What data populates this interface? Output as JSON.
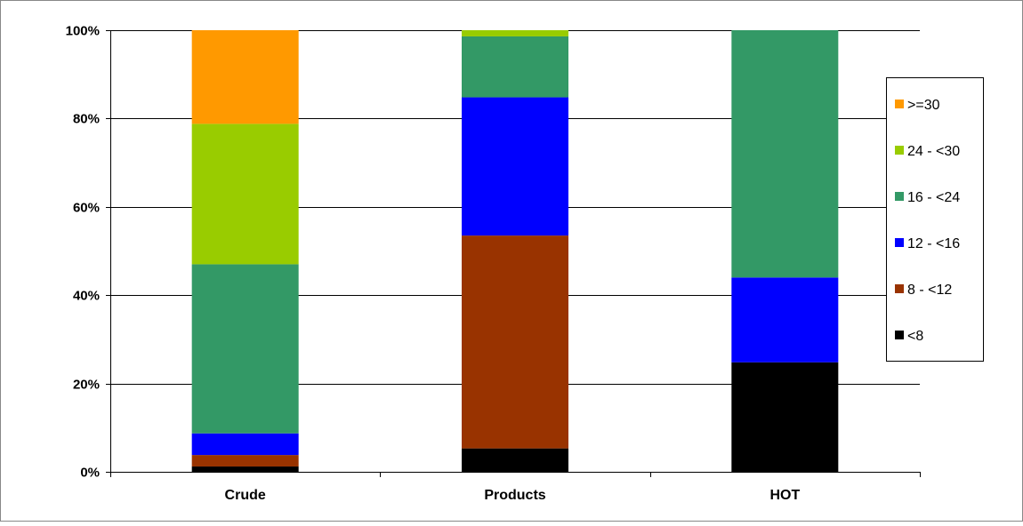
{
  "chart_data": {
    "type": "bar",
    "stacked": true,
    "percent": true,
    "categories": [
      "Crude",
      "Products",
      "HOT"
    ],
    "series": [
      {
        "name": "<8",
        "color": "#000000",
        "values": [
          1.2,
          5.3,
          24.8
        ]
      },
      {
        "name": "8 - <12",
        "color": "#993300",
        "values": [
          2.6,
          48.2,
          0
        ]
      },
      {
        "name": "12 - <16",
        "color": "#0000FF",
        "values": [
          4.9,
          31.3,
          19.2
        ]
      },
      {
        "name": "16 - <24",
        "color": "#339966",
        "values": [
          38.3,
          13.8,
          56.0
        ]
      },
      {
        "name": "24 - <30",
        "color": "#99CC00",
        "values": [
          31.8,
          1.4,
          0
        ]
      },
      {
        "name": ">=30",
        "color": "#FF9900",
        "values": [
          21.2,
          0,
          0
        ]
      }
    ],
    "ylim": [
      0,
      100
    ],
    "yticks": [
      0,
      20,
      40,
      60,
      80,
      100
    ],
    "ytick_labels": [
      "0%",
      "20%",
      "40%",
      "60%",
      "80%",
      "100%"
    ],
    "grid": true,
    "legend_position": "right",
    "title": "",
    "xlabel": "",
    "ylabel": ""
  }
}
